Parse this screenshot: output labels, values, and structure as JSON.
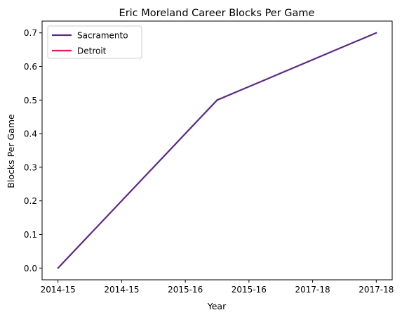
{
  "chart_data": {
    "type": "line",
    "title": "Eric Moreland Career Blocks Per Game",
    "xlabel": "Year",
    "ylabel": "Blocks Per Game",
    "x_tick_labels": [
      "2014-15",
      "2014-15",
      "2015-16",
      "2015-16",
      "2017-18",
      "2017-18"
    ],
    "x_ticks": [
      0,
      1,
      2,
      3,
      4,
      5
    ],
    "ylim": [
      -0.035,
      0.735
    ],
    "y_ticks": [
      0.0,
      0.1,
      0.2,
      0.3,
      0.4,
      0.5,
      0.6,
      0.7
    ],
    "y_tick_labels": [
      "0.0",
      "0.1",
      "0.2",
      "0.3",
      "0.4",
      "0.5",
      "0.6",
      "0.7"
    ],
    "xlim": [
      -0.25,
      5.25
    ],
    "grid": false,
    "legend_position": "top-left",
    "series": [
      {
        "name": "Sacramento",
        "color": "#5b2a86",
        "x": [
          0,
          2.5,
          5
        ],
        "y": [
          0.0,
          0.5,
          0.7
        ]
      },
      {
        "name": "Detroit",
        "color": "#e31b4f",
        "x": [],
        "y": []
      }
    ]
  }
}
